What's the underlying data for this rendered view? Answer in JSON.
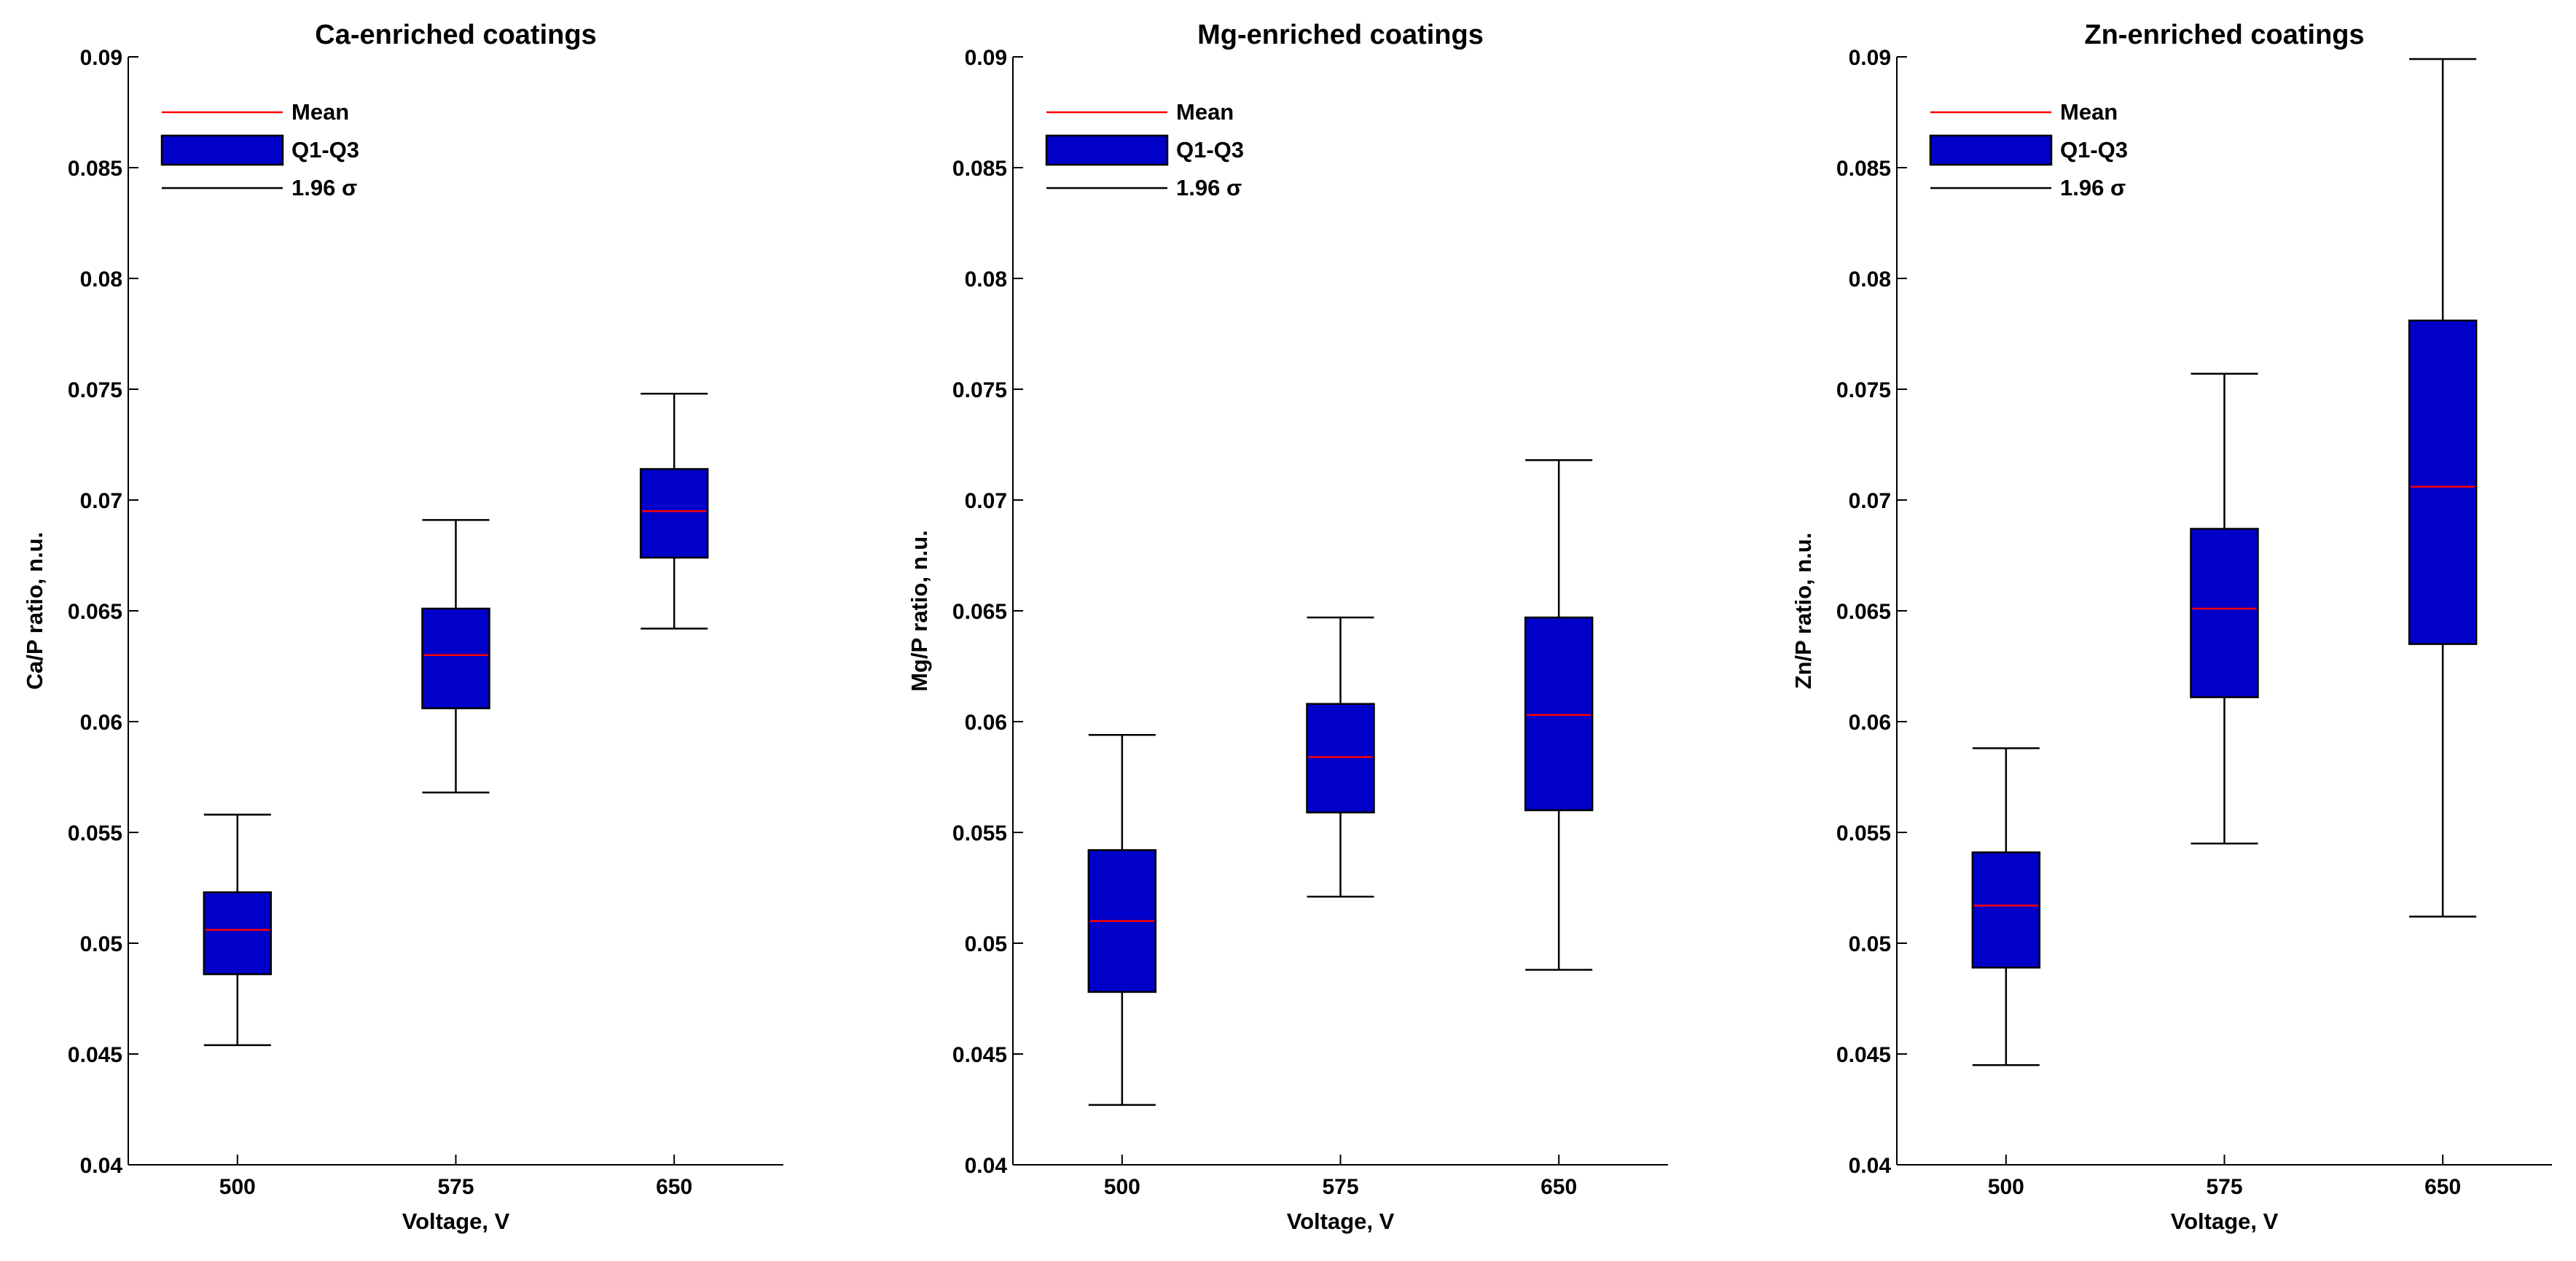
{
  "figure": {
    "legend": {
      "mean_label": "Mean",
      "box_label": "Q1-Q3",
      "whisker_label": "1.96 σ"
    },
    "colors": {
      "box_fill": "#0000c8",
      "mean_line": "#ff0000",
      "axis": "#000000"
    }
  },
  "chart_data": [
    {
      "type": "box",
      "title": "Ca-enriched coatings",
      "xlabel": "Voltage, V",
      "ylabel": "Ca/P ratio, n.u.",
      "categories": [
        "500",
        "575",
        "650"
      ],
      "ylim": [
        0.04,
        0.09
      ],
      "yticks": [
        0.04,
        0.045,
        0.05,
        0.055,
        0.06,
        0.065,
        0.07,
        0.075,
        0.08,
        0.085,
        0.09
      ],
      "ytick_labels": [
        "0.04",
        "0.045",
        "0.05",
        "0.055",
        "0.06",
        "0.065",
        "0.07",
        "0.075",
        "0.08",
        "0.085",
        "0.09"
      ],
      "boxes": [
        {
          "category": "500",
          "whisker_low": 0.0454,
          "q1": 0.0486,
          "mean": 0.0506,
          "q3": 0.0523,
          "whisker_high": 0.0558
        },
        {
          "category": "575",
          "whisker_low": 0.0568,
          "q1": 0.0606,
          "mean": 0.063,
          "q3": 0.0651,
          "whisker_high": 0.0691
        },
        {
          "category": "650",
          "whisker_low": 0.0642,
          "q1": 0.0674,
          "mean": 0.0695,
          "q3": 0.0714,
          "whisker_high": 0.0748
        }
      ]
    },
    {
      "type": "box",
      "title": "Mg-enriched coatings",
      "xlabel": "Voltage, V",
      "ylabel": "Mg/P ratio, n.u.",
      "categories": [
        "500",
        "575",
        "650"
      ],
      "ylim": [
        0.04,
        0.09
      ],
      "yticks": [
        0.04,
        0.045,
        0.05,
        0.055,
        0.06,
        0.065,
        0.07,
        0.075,
        0.08,
        0.085,
        0.09
      ],
      "ytick_labels": [
        "0.04",
        "0.045",
        "0.05",
        "0.055",
        "0.06",
        "0.065",
        "0.07",
        "0.075",
        "0.08",
        "0.085",
        "0.09"
      ],
      "boxes": [
        {
          "category": "500",
          "whisker_low": 0.0427,
          "q1": 0.0478,
          "mean": 0.051,
          "q3": 0.0542,
          "whisker_high": 0.0594
        },
        {
          "category": "575",
          "whisker_low": 0.0521,
          "q1": 0.0559,
          "mean": 0.0584,
          "q3": 0.0608,
          "whisker_high": 0.0647
        },
        {
          "category": "650",
          "whisker_low": 0.0488,
          "q1": 0.056,
          "mean": 0.0603,
          "q3": 0.0647,
          "whisker_high": 0.0718
        }
      ]
    },
    {
      "type": "box",
      "title": "Zn-enriched coatings",
      "xlabel": "Voltage, V",
      "ylabel": "Zn/P ratio, n.u.",
      "categories": [
        "500",
        "575",
        "650"
      ],
      "ylim": [
        0.04,
        0.09
      ],
      "yticks": [
        0.04,
        0.045,
        0.05,
        0.055,
        0.06,
        0.065,
        0.07,
        0.075,
        0.08,
        0.085,
        0.09
      ],
      "ytick_labels": [
        "0.04",
        "0.045",
        "0.05",
        "0.055",
        "0.06",
        "0.065",
        "0.07",
        "0.075",
        "0.08",
        "0.085",
        "0.09"
      ],
      "boxes": [
        {
          "category": "500",
          "whisker_low": 0.0445,
          "q1": 0.0489,
          "mean": 0.0517,
          "q3": 0.0541,
          "whisker_high": 0.0588
        },
        {
          "category": "575",
          "whisker_low": 0.0545,
          "q1": 0.0611,
          "mean": 0.0651,
          "q3": 0.0687,
          "whisker_high": 0.0757
        },
        {
          "category": "650",
          "whisker_low": 0.0512,
          "q1": 0.0635,
          "mean": 0.0706,
          "q3": 0.0781,
          "whisker_high": 0.0899
        }
      ]
    }
  ]
}
